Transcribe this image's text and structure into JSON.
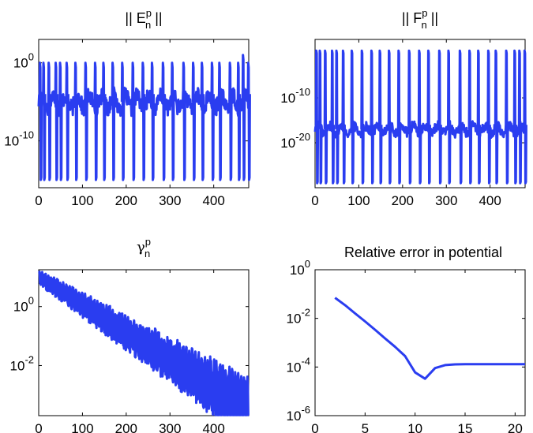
{
  "colors": {
    "series": "#2a3df0",
    "axes": "#000000",
    "background": "#ffffff"
  },
  "chart_data": [
    {
      "type": "line",
      "title": "|| E_n^p ||",
      "title_main": "|| E",
      "title_sup": "p",
      "title_sub": "n",
      "title_tail": " ||",
      "x_scale": "linear",
      "y_scale": "log",
      "xlim": [
        0,
        480
      ],
      "ylim_exp": [
        -16,
        3
      ],
      "x_ticks": [
        0,
        100,
        200,
        300,
        400
      ],
      "x_tick_labels": [
        "0",
        "100",
        "200",
        "300",
        "400"
      ],
      "y_ticks_exp": [
        0,
        -10
      ],
      "y_tick_labels": [
        {
          "base": "10",
          "exp": "0"
        },
        {
          "base": "10",
          "exp": "-10"
        }
      ],
      "grid": false,
      "spikes_x": [
        2,
        10,
        22,
        38,
        48,
        63,
        83,
        106,
        128,
        147,
        168,
        190,
        214,
        237,
        258,
        283,
        304,
        330,
        352,
        372,
        395,
        412,
        436,
        455,
        466,
        478
      ],
      "spikes_level_exp": [
        0,
        0,
        0,
        0,
        0,
        0,
        0,
        0,
        0,
        0,
        0,
        0,
        0,
        0,
        0,
        0,
        0,
        0,
        0,
        0,
        0,
        0,
        0,
        0,
        1,
        0
      ],
      "baseline_exp": -5,
      "floor_exp": -15
    },
    {
      "type": "line",
      "title": "|| F_n^p ||",
      "title_main": "|| F",
      "title_sup": "p",
      "title_sub": "n",
      "title_tail": " ||",
      "x_scale": "linear",
      "y_scale": "log",
      "xlim": [
        0,
        480
      ],
      "ylim_exp": [
        -30,
        3
      ],
      "x_ticks": [
        0,
        100,
        200,
        300,
        400
      ],
      "x_tick_labels": [
        "0",
        "100",
        "200",
        "300",
        "400"
      ],
      "y_ticks_exp": [
        -10,
        -20
      ],
      "y_tick_labels": [
        {
          "base": "10",
          "exp": "-10"
        },
        {
          "base": "10",
          "exp": "-20"
        }
      ],
      "grid": false,
      "spikes_x": [
        2,
        10,
        22,
        38,
        48,
        63,
        83,
        106,
        128,
        147,
        168,
        190,
        214,
        237,
        258,
        283,
        304,
        330,
        352,
        372,
        395,
        412,
        436,
        455,
        466,
        478
      ],
      "baseline_exp": -17,
      "floor_exp": -29
    },
    {
      "type": "line",
      "title": "γ_n^p",
      "title_main": "γ",
      "title_sup": "p",
      "title_sub": "n",
      "title_tail": "",
      "x_scale": "linear",
      "y_scale": "log",
      "xlim": [
        0,
        480
      ],
      "ylim_exp": [
        -3.7,
        1.25
      ],
      "x_ticks": [
        0,
        100,
        200,
        300,
        400
      ],
      "x_tick_labels": [
        "0",
        "100",
        "200",
        "300",
        "400"
      ],
      "y_ticks_exp": [
        0,
        -2
      ],
      "y_tick_labels": [
        {
          "base": "10",
          "exp": "0"
        },
        {
          "base": "10",
          "exp": "-2"
        }
      ],
      "grid": false,
      "start_exp": 1.0,
      "end_exp": -3.5
    },
    {
      "type": "line",
      "title": "Relative error in potential",
      "x_scale": "linear",
      "y_scale": "log",
      "xlim": [
        0,
        21
      ],
      "ylim_exp": [
        -6,
        0
      ],
      "x_ticks": [
        0,
        5,
        10,
        15,
        20
      ],
      "x_tick_labels": [
        "0",
        "5",
        "10",
        "15",
        "20"
      ],
      "y_ticks_exp": [
        0,
        -2,
        -4,
        -6
      ],
      "y_tick_labels": [
        {
          "base": "10",
          "exp": "0"
        },
        {
          "base": "10",
          "exp": "-2"
        },
        {
          "base": "10",
          "exp": "-4"
        },
        {
          "base": "10",
          "exp": "-6"
        }
      ],
      "grid": false,
      "x": [
        2,
        3,
        4,
        5,
        6,
        7,
        8,
        9,
        10,
        11,
        12,
        13,
        14,
        15,
        16,
        17,
        18,
        19,
        20,
        21
      ],
      "y": [
        0.07,
        0.035,
        0.016,
        0.0075,
        0.0034,
        0.0015,
        0.00068,
        0.00028,
        6e-05,
        3.3e-05,
        9e-05,
        0.00012,
        0.000128,
        0.00013,
        0.00013,
        0.00013,
        0.00013,
        0.00013,
        0.00013,
        0.00013
      ]
    }
  ]
}
